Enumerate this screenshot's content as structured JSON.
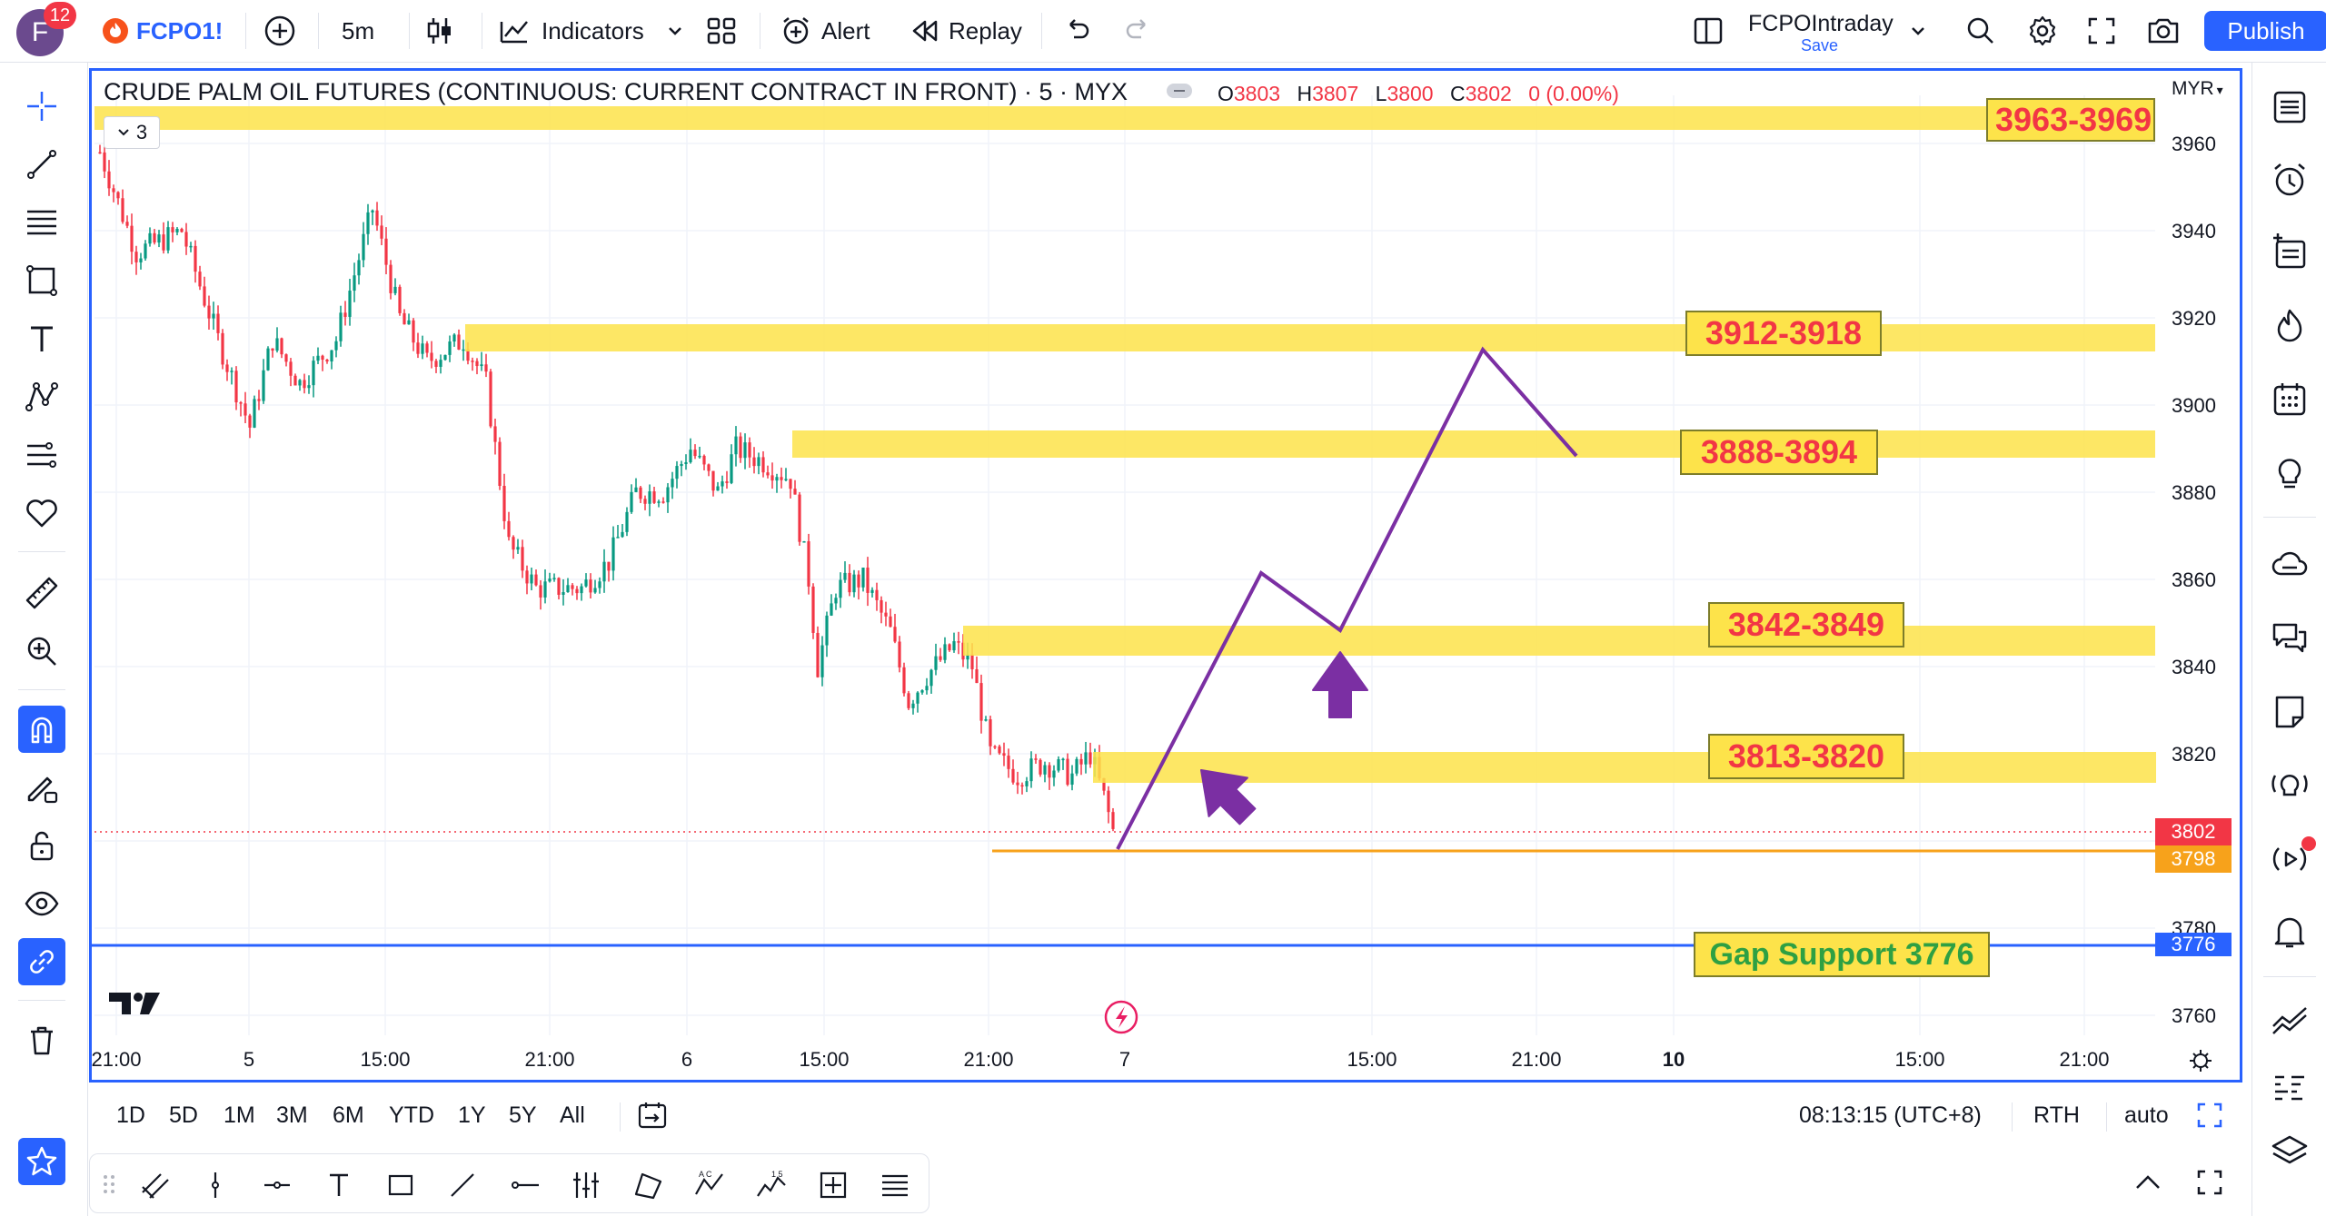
{
  "header": {
    "notification_count": "12",
    "avatar_letter": "F",
    "symbol": "FCPO1!",
    "interval": "5m",
    "indicators_label": "Indicators",
    "alert_label": "Alert",
    "replay_label": "Replay",
    "layout_name": "FCPOIntraday",
    "layout_save": "Save",
    "publish_label": "Publish"
  },
  "chart": {
    "title": "CRUDE PALM OIL FUTURES (CONTINUOUS: CURRENT CONTRACT IN FRONT) · 5 · MYX",
    "ohlc": {
      "o_label": "O",
      "o": "3803",
      "h_label": "H",
      "h": "3807",
      "l_label": "L",
      "l": "3800",
      "c_label": "C",
      "c": "3802",
      "change": "0 (0.00%)"
    },
    "currency": "MYR",
    "collapse_count": "3",
    "price_axis": [
      "3960",
      "3940",
      "3920",
      "3900",
      "3880",
      "3860",
      "3840",
      "3820",
      "3780",
      "3760"
    ],
    "time_axis": [
      "21:00",
      "5",
      "15:00",
      "21:00",
      "6",
      "15:00",
      "21:00",
      "7",
      "15:00",
      "21:00",
      "10",
      "15:00",
      "21:00"
    ],
    "zones": [
      {
        "label": "3963-3969"
      },
      {
        "label": "3912-3918"
      },
      {
        "label": "3888-3894"
      },
      {
        "label": "3842-3849"
      },
      {
        "label": "3813-3820"
      }
    ],
    "gap_support_label": "Gap Support 3776",
    "badges": {
      "last_price": "3802",
      "orange_line": "3798",
      "gap_line": "3776"
    },
    "colors": {
      "zone_fill": "#fde34a",
      "zone_text": "#f23645",
      "up": "#089981",
      "down": "#f23645",
      "projection": "#7b2fa3",
      "accent": "#2962ff",
      "orange": "#f7a21b",
      "gap_text": "#2ea043"
    },
    "logo": "TV"
  },
  "rangebar": {
    "ranges": [
      "1D",
      "5D",
      "1M",
      "3M",
      "6M",
      "YTD",
      "1Y",
      "5Y",
      "All"
    ],
    "clock": "08:13:15 (UTC+8)",
    "session": "RTH",
    "scale": "auto"
  }
}
